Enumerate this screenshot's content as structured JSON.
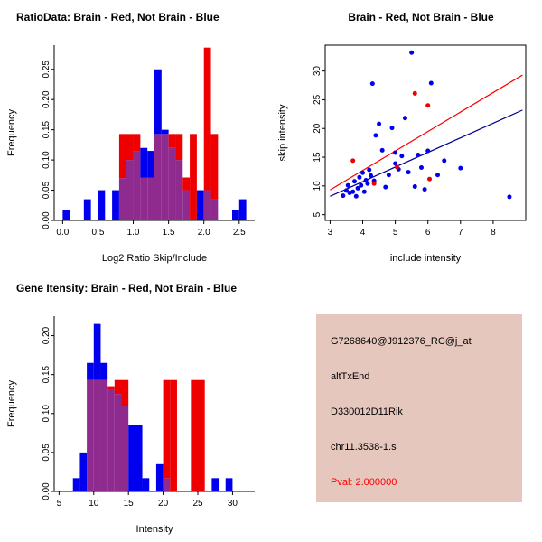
{
  "figure": {
    "background": "#ffffff"
  },
  "colors": {
    "brain": "#EE0000",
    "not_brain": "#0000EE",
    "overlap": "#8F2A8F",
    "axis": "#000000",
    "fit_line_brain": "#FF0000",
    "fit_line_not_brain": "#00008B"
  },
  "chart_data": [
    {
      "id": "ratio_histogram",
      "type": "bar",
      "title": "RatioData: Brain - Red, Not Brain - Blue",
      "xlabel": "Log2 Ratio Skip/Include",
      "ylabel": "Frequency",
      "xlim": [
        -0.12,
        2.72
      ],
      "ylim": [
        0,
        0.29
      ],
      "bin_width": 0.1,
      "grid": false,
      "legend_note": "Brain = red, Not Brain = blue, overlap shown purple",
      "xticks": [
        {
          "v": 0.0,
          "l": "0.0"
        },
        {
          "v": 0.5,
          "l": "0.5"
        },
        {
          "v": 1.0,
          "l": "1.0"
        },
        {
          "v": 1.5,
          "l": "1.5"
        },
        {
          "v": 2.0,
          "l": "2.0"
        },
        {
          "v": 2.5,
          "l": "2.5"
        }
      ],
      "yticks": [
        {
          "v": 0.0,
          "l": "0.00"
        },
        {
          "v": 0.05,
          "l": "0.05"
        },
        {
          "v": 0.1,
          "l": "0.10"
        },
        {
          "v": 0.15,
          "l": "0.15"
        },
        {
          "v": 0.2,
          "l": "0.20"
        },
        {
          "v": 0.25,
          "l": "0.25"
        }
      ],
      "series": [
        {
          "name": "Not Brain",
          "color": "#0000EE",
          "bins": [
            [
              0.0,
              0.017
            ],
            [
              0.3,
              0.035
            ],
            [
              0.5,
              0.05
            ],
            [
              0.7,
              0.05
            ],
            [
              0.8,
              0.07
            ],
            [
              0.9,
              0.1
            ],
            [
              1.0,
              0.115
            ],
            [
              1.1,
              0.12
            ],
            [
              1.2,
              0.115
            ],
            [
              1.3,
              0.25
            ],
            [
              1.4,
              0.15
            ],
            [
              1.5,
              0.12
            ],
            [
              1.6,
              0.1
            ],
            [
              1.7,
              0.05
            ],
            [
              1.9,
              0.05
            ],
            [
              2.0,
              0.05
            ],
            [
              2.1,
              0.035
            ],
            [
              2.4,
              0.017
            ],
            [
              2.5,
              0.035
            ]
          ]
        },
        {
          "name": "Brain",
          "color": "#EE0000",
          "bins": [
            [
              0.8,
              0.143
            ],
            [
              0.9,
              0.143
            ],
            [
              1.0,
              0.143
            ],
            [
              1.1,
              0.071
            ],
            [
              1.2,
              0.071
            ],
            [
              1.3,
              0.143
            ],
            [
              1.4,
              0.143
            ],
            [
              1.5,
              0.143
            ],
            [
              1.6,
              0.143
            ],
            [
              1.7,
              0.071
            ],
            [
              1.8,
              0.143
            ],
            [
              2.0,
              0.286
            ],
            [
              2.1,
              0.143
            ]
          ]
        }
      ]
    },
    {
      "id": "intensity_scatter",
      "type": "scatter",
      "title": "Brain - Red, Not Brain - Blue",
      "xlabel": "include intensity",
      "ylabel": "skip intensity",
      "xlim": [
        2.85,
        9.0
      ],
      "ylim": [
        4.0,
        34.5
      ],
      "grid": false,
      "xticks": [
        {
          "v": 3,
          "l": "3"
        },
        {
          "v": 4,
          "l": "4"
        },
        {
          "v": 5,
          "l": "5"
        },
        {
          "v": 6,
          "l": "6"
        },
        {
          "v": 7,
          "l": "7"
        },
        {
          "v": 8,
          "l": "8"
        }
      ],
      "yticks": [
        {
          "v": 5,
          "l": "5"
        },
        {
          "v": 10,
          "l": "10"
        },
        {
          "v": 15,
          "l": "15"
        },
        {
          "v": 20,
          "l": "20"
        },
        {
          "v": 25,
          "l": "25"
        },
        {
          "v": 30,
          "l": "30"
        }
      ],
      "series": [
        {
          "name": "Not Brain",
          "color": "#0000EE",
          "points": [
            [
              3.4,
              8.3
            ],
            [
              3.5,
              9.2
            ],
            [
              3.55,
              10.1
            ],
            [
              3.6,
              8.8
            ],
            [
              3.7,
              9.0
            ],
            [
              3.75,
              10.8
            ],
            [
              3.8,
              8.2
            ],
            [
              3.85,
              9.6
            ],
            [
              3.9,
              11.5
            ],
            [
              3.95,
              10.1
            ],
            [
              4.0,
              12.3
            ],
            [
              4.05,
              9.0
            ],
            [
              4.1,
              11.0
            ],
            [
              4.15,
              10.4
            ],
            [
              4.2,
              12.8
            ],
            [
              4.25,
              11.8
            ],
            [
              4.3,
              27.8
            ],
            [
              4.35,
              10.9
            ],
            [
              4.4,
              18.8
            ],
            [
              4.5,
              20.8
            ],
            [
              4.6,
              16.2
            ],
            [
              4.7,
              9.8
            ],
            [
              4.8,
              11.9
            ],
            [
              4.9,
              20.1
            ],
            [
              5.0,
              15.8
            ],
            [
              5.0,
              13.9
            ],
            [
              5.1,
              12.9
            ],
            [
              5.2,
              15.2
            ],
            [
              5.3,
              21.8
            ],
            [
              5.4,
              12.4
            ],
            [
              5.5,
              33.2
            ],
            [
              5.6,
              9.9
            ],
            [
              5.7,
              15.4
            ],
            [
              5.8,
              13.2
            ],
            [
              5.9,
              9.4
            ],
            [
              6.0,
              16.1
            ],
            [
              6.1,
              27.9
            ],
            [
              6.3,
              11.9
            ],
            [
              6.5,
              14.4
            ],
            [
              7.0,
              13.1
            ],
            [
              8.5,
              8.1
            ]
          ]
        },
        {
          "name": "Brain",
          "color": "#EE0000",
          "points": [
            [
              3.7,
              14.4
            ],
            [
              4.35,
              10.4
            ],
            [
              5.05,
              13.3
            ],
            [
              5.6,
              26.1
            ],
            [
              6.0,
              24.0
            ],
            [
              6.05,
              11.2
            ]
          ]
        }
      ],
      "lines": [
        {
          "name": "brain-fit",
          "color": "#FF0000",
          "x1": 3.0,
          "y1": 9.3,
          "x2": 8.9,
          "y2": 29.3
        },
        {
          "name": "not-brain-fit",
          "color": "#00008B",
          "x1": 3.0,
          "y1": 8.2,
          "x2": 8.9,
          "y2": 23.2
        }
      ]
    },
    {
      "id": "gene_intensity_histogram",
      "type": "bar",
      "title": "Gene Itensity: Brain - Red, Not Brain - Blue",
      "xlabel": "Intensity",
      "ylabel": "Frequency",
      "xlim": [
        4.3,
        33.2
      ],
      "ylim": [
        0,
        0.225
      ],
      "bin_width": 1,
      "grid": false,
      "legend_note": "Brain = red, Not Brain = blue, overlap shown purple",
      "xticks": [
        {
          "v": 5,
          "l": "5"
        },
        {
          "v": 10,
          "l": "10"
        },
        {
          "v": 15,
          "l": "15"
        },
        {
          "v": 20,
          "l": "20"
        },
        {
          "v": 25,
          "l": "25"
        },
        {
          "v": 30,
          "l": "30"
        }
      ],
      "yticks": [
        {
          "v": 0.0,
          "l": "0.00"
        },
        {
          "v": 0.05,
          "l": "0.05"
        },
        {
          "v": 0.1,
          "l": "0.10"
        },
        {
          "v": 0.15,
          "l": "0.15"
        },
        {
          "v": 0.2,
          "l": "0.20"
        }
      ],
      "series": [
        {
          "name": "Not Brain",
          "color": "#0000EE",
          "bins": [
            [
              7,
              0.017
            ],
            [
              8,
              0.05
            ],
            [
              9,
              0.165
            ],
            [
              10,
              0.215
            ],
            [
              11,
              0.165
            ],
            [
              12,
              0.13
            ],
            [
              13,
              0.125
            ],
            [
              14,
              0.11
            ],
            [
              15,
              0.085
            ],
            [
              16,
              0.085
            ],
            [
              17,
              0.017
            ],
            [
              19,
              0.035
            ],
            [
              20,
              0.017
            ],
            [
              27,
              0.017
            ],
            [
              29,
              0.017
            ]
          ]
        },
        {
          "name": "Brain",
          "color": "#EE0000",
          "bins": [
            [
              9,
              0.143
            ],
            [
              10,
              0.143
            ],
            [
              11,
              0.143
            ],
            [
              12,
              0.135
            ],
            [
              13,
              0.143
            ],
            [
              14,
              0.143
            ],
            [
              20,
              0.143
            ],
            [
              21,
              0.143
            ],
            [
              24,
              0.143
            ],
            [
              25,
              0.143
            ]
          ]
        }
      ]
    }
  ],
  "info_box": {
    "background": "#E6C7BE",
    "lines": [
      {
        "text": "G7268640@J912376_RC@j_at",
        "color": "#000000"
      },
      {
        "text": "altTxEnd",
        "color": "#000000"
      },
      {
        "text": "D330012D11Rik",
        "color": "#000000"
      },
      {
        "text": "chr11.3538-1.s",
        "color": "#000000"
      },
      {
        "text": "Pval: 2.000000",
        "color": "#FF0000"
      }
    ]
  }
}
